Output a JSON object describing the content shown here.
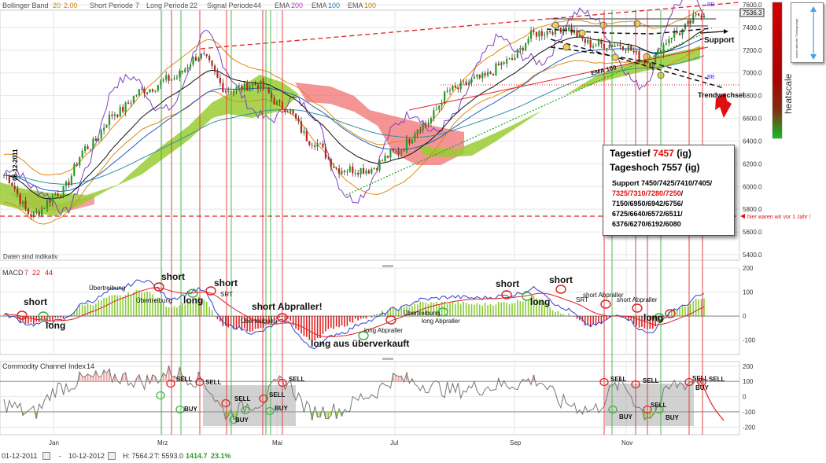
{
  "header": {
    "bb_label": "Bollinger Band",
    "bb_p1": "20",
    "bb_p2": "2.00",
    "short_label": "Short Periode",
    "short_val": "7",
    "long_label": "Long Periode",
    "long_val": "22",
    "signal_label": "Signal Periode",
    "signal_val": "44",
    "ema_label": "EMA",
    "ema1": "200",
    "ema2": "100",
    "ema3": "100",
    "colors": {
      "bb": "#d08000",
      "ema200": "#c030c0",
      "ema100a": "#2080c0",
      "ema100b": "#c08000"
    }
  },
  "price_axis": {
    "ticks": [
      "7600.0",
      "7400.0",
      "7200.0",
      "7000.0",
      "6800.0",
      "6600.0",
      "6400.0",
      "6200.0",
      "6000.0",
      "5800.0",
      "5600.0",
      "5400.0"
    ],
    "current_price": "7536.3"
  },
  "macd_axis": {
    "ticks": [
      "200",
      "100",
      "0",
      "-100"
    ]
  },
  "cci_axis": {
    "ticks": [
      "200",
      "100",
      "0",
      "-100",
      "-200"
    ]
  },
  "x_axis": {
    "ticks": [
      "Jan",
      "Mrz",
      "Mai",
      "Jul",
      "Sep",
      "Nov"
    ]
  },
  "panels": {
    "macd_title": "MACD",
    "macd_p1": "7",
    "macd_p2": "22",
    "macd_p3": "44",
    "cci_title": "Commodity Channel Index",
    "cci_p": "14"
  },
  "price_annotations": {
    "date_label": "06-12-2011",
    "disclaimer": "Daten sind indikativ",
    "support": "Support",
    "trendwechsel": "Trendwechsel",
    "ema100": "EMA 100",
    "bb_top": "BB",
    "bb_low": "BB",
    "last_year": "hier waren wir vor 1 Jahr !",
    "heatscale": "heatscale"
  },
  "infobox": {
    "tief_label": "Tagestief",
    "tief_val": "7457",
    "tief_suffix": "(ig)",
    "hoch_label": "Tageshoch 7557 (ig)",
    "line1": "Support 7450/7425/7410/7405/",
    "line2": "7325/7310/7280/7250",
    "line2_end": "/",
    "line3": "7150/6950/6942/6756/",
    "line4": "6725/6640/6572/6511/",
    "line5": "6376/6270/6192/6080"
  },
  "legend": {
    "text": "meine aktuelle Tradingrange"
  },
  "macd_annotations": [
    {
      "text": "short",
      "big": true
    },
    {
      "text": "long",
      "big": true
    },
    {
      "text": "Übertreibung",
      "big": false
    },
    {
      "text": "Übertreibung",
      "big": false
    },
    {
      "text": "short",
      "big": true
    },
    {
      "text": "long",
      "big": true
    },
    {
      "text": "short",
      "big": true
    },
    {
      "text": "SRT",
      "big": false
    },
    {
      "text": "short Abpraller!",
      "big": true
    },
    {
      "text": "Übertreibung",
      "big": false
    },
    {
      "text": "long aus überverkauft",
      "big": true
    },
    {
      "text": "long Abpraller",
      "big": false
    },
    {
      "text": "Übertreibung",
      "big": false
    },
    {
      "text": "long Abpraller",
      "big": false
    },
    {
      "text": "short",
      "big": true
    },
    {
      "text": "long",
      "big": true
    },
    {
      "text": "short",
      "big": true
    },
    {
      "text": "SRT",
      "big": false
    },
    {
      "text": "short Abpraller",
      "big": false
    },
    {
      "text": "short Abpraller",
      "big": false
    },
    {
      "text": "long",
      "big": true
    }
  ],
  "cci_annotations": [
    {
      "text": "SELL"
    },
    {
      "text": "BUY"
    },
    {
      "text": "SELL"
    },
    {
      "text": "SELL"
    },
    {
      "text": "BUY"
    },
    {
      "text": "SELL"
    },
    {
      "text": "BUY"
    },
    {
      "text": "SELL"
    },
    {
      "text": "SELL"
    },
    {
      "text": "BUY"
    },
    {
      "text": "SELL"
    },
    {
      "text": "SELL"
    },
    {
      "text": "BUY"
    },
    {
      "text": "SELL"
    },
    {
      "text": "BUY"
    },
    {
      "text": "SELL"
    }
  ],
  "footer": {
    "from": "01-12-2011",
    "dash": "-",
    "to": "10-12-2012",
    "h": "H: 7564.2",
    "t": "T: 5593.0",
    "diff": "1414.7",
    "pct": "23.1%"
  },
  "chart_data": {
    "type": "line",
    "title": "",
    "x": [
      "2011-12-01",
      "2011-12-15",
      "2012-01-02",
      "2012-01-16",
      "2012-02-01",
      "2012-02-15",
      "2012-03-01",
      "2012-03-15",
      "2012-04-02",
      "2012-04-16",
      "2012-05-02",
      "2012-05-16",
      "2012-06-01",
      "2012-06-15",
      "2012-07-02",
      "2012-07-16",
      "2012-08-01",
      "2012-08-15",
      "2012-09-03",
      "2012-09-17",
      "2012-10-01",
      "2012-10-15",
      "2012-11-01",
      "2012-11-15",
      "2012-12-03",
      "2012-12-10"
    ],
    "series": [
      {
        "values": [
          6100,
          5750,
          5950,
          6350,
          6650,
          6850,
          6950,
          7150,
          6850,
          6900,
          6700,
          6400,
          6150,
          6150,
          6300,
          6550,
          6850,
          6950,
          7100,
          7350,
          7400,
          7250,
          7250,
          7100,
          7350,
          7530
        ]
      },
      {
        "values": [
          5,
          -35,
          -20,
          60,
          110,
          150,
          75,
          110,
          -40,
          -70,
          -20,
          -130,
          -70,
          -20,
          30,
          70,
          80,
          75,
          85,
          115,
          30,
          -40,
          5,
          -70,
          30,
          90
        ]
      },
      {
        "values": [
          -50,
          -110,
          60,
          120,
          130,
          100,
          160,
          110,
          -110,
          -40,
          100,
          -100,
          -90,
          10,
          120,
          80,
          40,
          60,
          80,
          110,
          -40,
          -90,
          80,
          -120,
          80,
          110
        ]
      }
    ],
    "ylim": [
      5400,
      7600
    ],
    "grid": true
  }
}
